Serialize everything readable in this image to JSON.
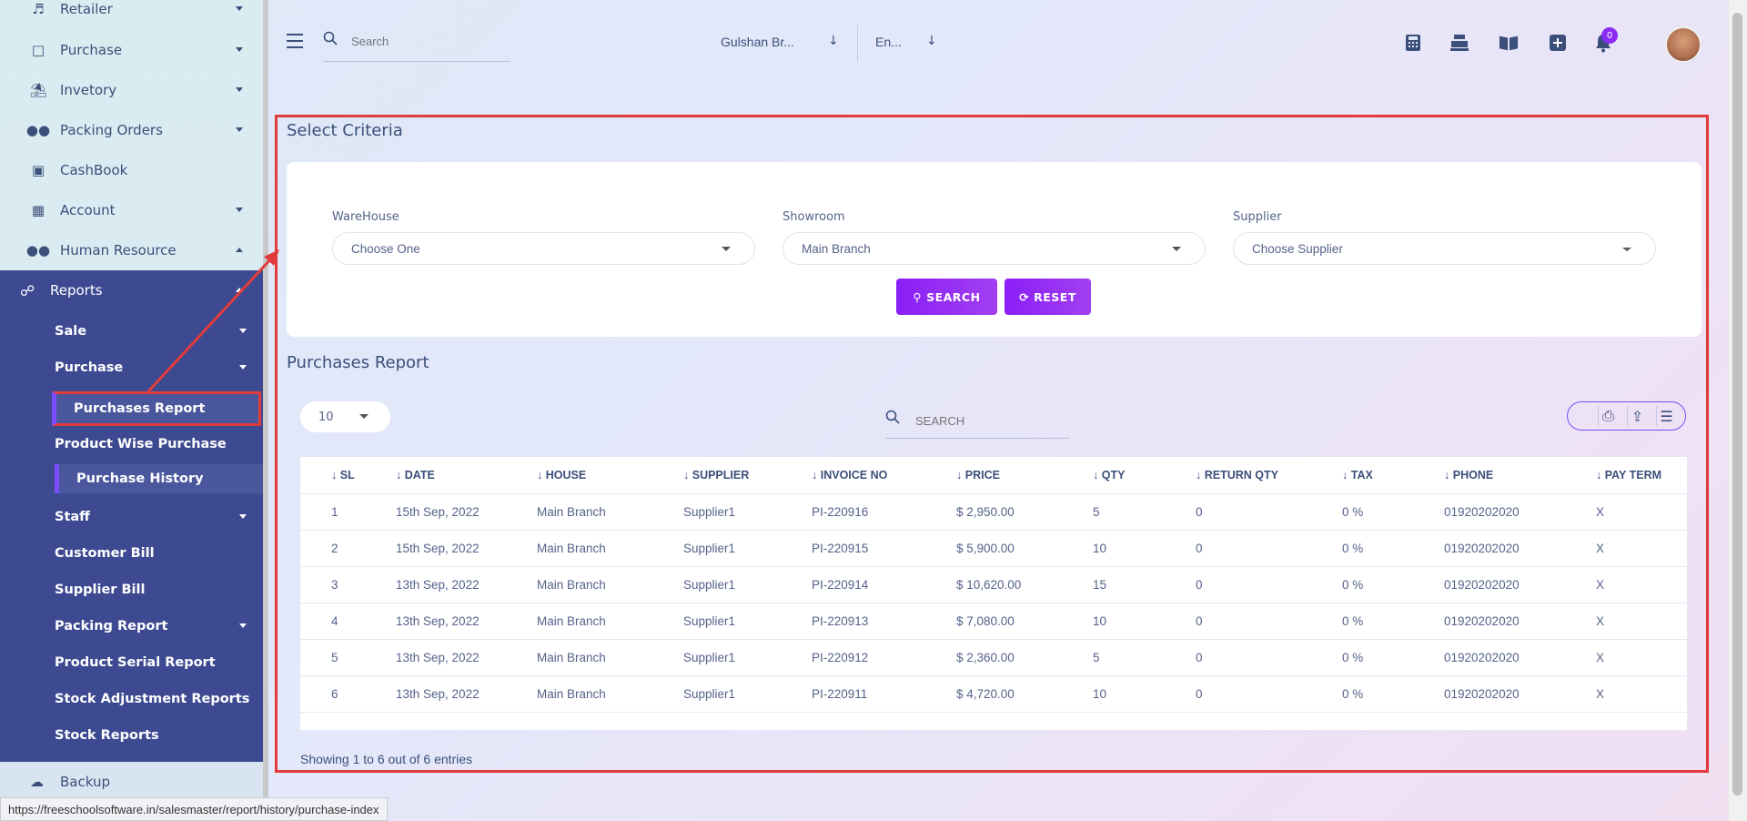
{
  "sidebar": {
    "items": [
      {
        "label": "Retailer",
        "icon": "person-walking-icon"
      },
      {
        "label": "Purchase",
        "icon": "store-icon"
      },
      {
        "label": "Invetory",
        "icon": "bank-icon"
      },
      {
        "label": "Packing Orders",
        "icon": "users-icon"
      },
      {
        "label": "CashBook",
        "icon": "book-icon"
      },
      {
        "label": "Account",
        "icon": "calculator-icon"
      },
      {
        "label": "Human Resource",
        "icon": "users-icon"
      }
    ],
    "reports": {
      "label": "Reports",
      "icon": "network-icon",
      "sub": [
        {
          "label": "Sale"
        },
        {
          "label": "Purchase"
        },
        {
          "label": "Purchases Report",
          "active": true
        },
        {
          "label": "Product Wise Purchase"
        },
        {
          "label": "Purchase History"
        },
        {
          "label": "Staff"
        },
        {
          "label": "Customer Bill"
        },
        {
          "label": "Supplier Bill"
        },
        {
          "label": "Packing Report"
        },
        {
          "label": "Product Serial Report"
        },
        {
          "label": "Stock Adjustment Reports"
        },
        {
          "label": "Stock Reports"
        }
      ]
    },
    "backup": {
      "label": "Backup",
      "icon": "cloud-download-icon"
    }
  },
  "topbar": {
    "search_placeholder": "Search",
    "branch": "Gulshan Br...",
    "language": "En...",
    "notification_count": "0"
  },
  "criteria": {
    "title": "Select Criteria",
    "warehouse_label": "WareHouse",
    "warehouse_value": "Choose One",
    "showroom_label": "Showroom",
    "showroom_value": "Main Branch",
    "supplier_label": "Supplier",
    "supplier_value": "Choose Supplier",
    "search_btn": "SEARCH",
    "reset_btn": "RESET"
  },
  "report": {
    "title": "Purchases Report",
    "page_length": "10",
    "search_placeholder": "SEARCH",
    "columns": [
      "SL",
      "DATE",
      "HOUSE",
      "SUPPLIER",
      "INVOICE NO",
      "PRICE",
      "QTY",
      "RETURN QTY",
      "TAX",
      "PHONE",
      "PAY TERM"
    ],
    "rows": [
      [
        "1",
        "15th Sep, 2022",
        "Main Branch",
        "Supplier1",
        "PI-220916",
        "$ 2,950.00",
        "5",
        "0",
        "0 %",
        "01920202020",
        "X"
      ],
      [
        "2",
        "15th Sep, 2022",
        "Main Branch",
        "Supplier1",
        "PI-220915",
        "$ 5,900.00",
        "10",
        "0",
        "0 %",
        "01920202020",
        "X"
      ],
      [
        "3",
        "13th Sep, 2022",
        "Main Branch",
        "Supplier1",
        "PI-220914",
        "$ 10,620.00",
        "15",
        "0",
        "0 %",
        "01920202020",
        "X"
      ],
      [
        "4",
        "13th Sep, 2022",
        "Main Branch",
        "Supplier1",
        "PI-220913",
        "$ 7,080.00",
        "10",
        "0",
        "0 %",
        "01920202020",
        "X"
      ],
      [
        "5",
        "13th Sep, 2022",
        "Main Branch",
        "Supplier1",
        "PI-220912",
        "$ 2,360.00",
        "5",
        "0",
        "0 %",
        "01920202020",
        "X"
      ],
      [
        "6",
        "13th Sep, 2022",
        "Main Branch",
        "Supplier1",
        "PI-220911",
        "$ 4,720.00",
        "10",
        "0",
        "0 %",
        "01920202020",
        "X"
      ]
    ],
    "footer": "Showing 1 to 6 out of 6 entries"
  },
  "status_url": "https://freeschoolsoftware.in/salesmaster/report/history/purchase-index",
  "colors": {
    "sidebar_active": "#3d4a91",
    "accent": "#8a1ff7",
    "highlight_box": "#e23b3b"
  }
}
